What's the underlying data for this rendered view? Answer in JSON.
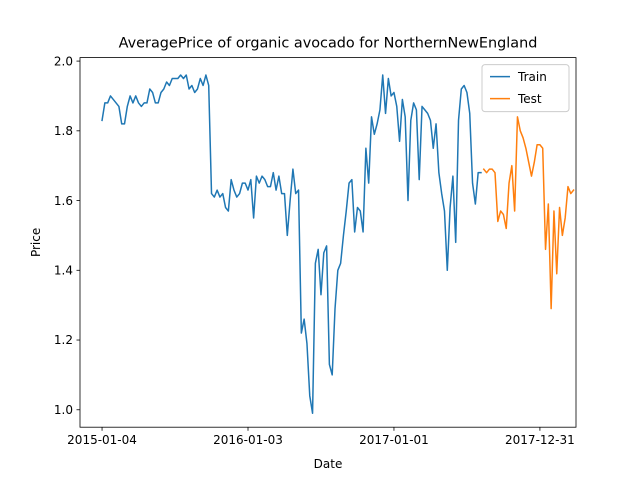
{
  "chart_data": {
    "type": "line",
    "title": "AveragePrice of organic avocado for NorthernNewEngland",
    "xlabel": "Date",
    "ylabel": "Price",
    "x_ticks": [
      "2015-01-04",
      "2016-01-03",
      "2017-01-01",
      "2017-12-31"
    ],
    "xlim": [
      "2014-11-10",
      "2018-03-31"
    ],
    "ylim": [
      0.95,
      2.01
    ],
    "y_ticks": [
      1.0,
      1.2,
      1.4,
      1.6,
      1.8,
      2.0
    ],
    "y_tick_labels": [
      "1.0",
      "1.2",
      "1.4",
      "1.6",
      "1.8",
      "2.0"
    ],
    "grid": false,
    "legend_position": "top-right",
    "series": [
      {
        "name": "Train",
        "color": "#1f77b4",
        "points": [
          [
            "2015-01-04",
            1.83
          ],
          [
            "2015-01-11",
            1.88
          ],
          [
            "2015-01-18",
            1.88
          ],
          [
            "2015-01-25",
            1.9
          ],
          [
            "2015-02-01",
            1.89
          ],
          [
            "2015-02-08",
            1.88
          ],
          [
            "2015-02-15",
            1.87
          ],
          [
            "2015-02-22",
            1.82
          ],
          [
            "2015-03-01",
            1.82
          ],
          [
            "2015-03-08",
            1.87
          ],
          [
            "2015-03-15",
            1.9
          ],
          [
            "2015-03-22",
            1.88
          ],
          [
            "2015-03-29",
            1.9
          ],
          [
            "2015-04-05",
            1.88
          ],
          [
            "2015-04-12",
            1.87
          ],
          [
            "2015-04-19",
            1.88
          ],
          [
            "2015-04-26",
            1.88
          ],
          [
            "2015-05-03",
            1.92
          ],
          [
            "2015-05-10",
            1.91
          ],
          [
            "2015-05-17",
            1.88
          ],
          [
            "2015-05-24",
            1.88
          ],
          [
            "2015-05-31",
            1.91
          ],
          [
            "2015-06-07",
            1.92
          ],
          [
            "2015-06-14",
            1.94
          ],
          [
            "2015-06-21",
            1.93
          ],
          [
            "2015-06-28",
            1.95
          ],
          [
            "2015-07-05",
            1.95
          ],
          [
            "2015-07-12",
            1.95
          ],
          [
            "2015-07-19",
            1.96
          ],
          [
            "2015-07-26",
            1.95
          ],
          [
            "2015-08-02",
            1.96
          ],
          [
            "2015-08-09",
            1.92
          ],
          [
            "2015-08-16",
            1.93
          ],
          [
            "2015-08-23",
            1.91
          ],
          [
            "2015-08-30",
            1.92
          ],
          [
            "2015-09-06",
            1.95
          ],
          [
            "2015-09-13",
            1.93
          ],
          [
            "2015-09-20",
            1.96
          ],
          [
            "2015-09-27",
            1.93
          ],
          [
            "2015-10-04",
            1.62
          ],
          [
            "2015-10-11",
            1.61
          ],
          [
            "2015-10-18",
            1.63
          ],
          [
            "2015-10-25",
            1.61
          ],
          [
            "2015-11-01",
            1.62
          ],
          [
            "2015-11-08",
            1.58
          ],
          [
            "2015-11-15",
            1.57
          ],
          [
            "2015-11-22",
            1.66
          ],
          [
            "2015-11-29",
            1.63
          ],
          [
            "2015-12-06",
            1.61
          ],
          [
            "2015-12-13",
            1.62
          ],
          [
            "2015-12-20",
            1.65
          ],
          [
            "2015-12-27",
            1.65
          ],
          [
            "2016-01-03",
            1.63
          ],
          [
            "2016-01-10",
            1.66
          ],
          [
            "2016-01-17",
            1.55
          ],
          [
            "2016-01-24",
            1.67
          ],
          [
            "2016-01-31",
            1.65
          ],
          [
            "2016-02-07",
            1.67
          ],
          [
            "2016-02-14",
            1.66
          ],
          [
            "2016-02-21",
            1.64
          ],
          [
            "2016-02-28",
            1.64
          ],
          [
            "2016-03-06",
            1.68
          ],
          [
            "2016-03-13",
            1.63
          ],
          [
            "2016-03-20",
            1.67
          ],
          [
            "2016-03-27",
            1.62
          ],
          [
            "2016-04-03",
            1.62
          ],
          [
            "2016-04-10",
            1.5
          ],
          [
            "2016-04-17",
            1.6
          ],
          [
            "2016-04-24",
            1.69
          ],
          [
            "2016-05-01",
            1.62
          ],
          [
            "2016-05-08",
            1.63
          ],
          [
            "2016-05-15",
            1.22
          ],
          [
            "2016-05-22",
            1.26
          ],
          [
            "2016-05-29",
            1.19
          ],
          [
            "2016-06-05",
            1.04
          ],
          [
            "2016-06-12",
            0.99
          ],
          [
            "2016-06-19",
            1.42
          ],
          [
            "2016-06-26",
            1.46
          ],
          [
            "2016-07-03",
            1.33
          ],
          [
            "2016-07-10",
            1.45
          ],
          [
            "2016-07-17",
            1.47
          ],
          [
            "2016-07-24",
            1.13
          ],
          [
            "2016-07-31",
            1.1
          ],
          [
            "2016-08-07",
            1.29
          ],
          [
            "2016-08-14",
            1.4
          ],
          [
            "2016-08-21",
            1.42
          ],
          [
            "2016-08-28",
            1.5
          ],
          [
            "2016-09-04",
            1.57
          ],
          [
            "2016-09-11",
            1.65
          ],
          [
            "2016-09-18",
            1.66
          ],
          [
            "2016-09-25",
            1.51
          ],
          [
            "2016-10-02",
            1.58
          ],
          [
            "2016-10-09",
            1.57
          ],
          [
            "2016-10-16",
            1.51
          ],
          [
            "2016-10-23",
            1.75
          ],
          [
            "2016-10-30",
            1.65
          ],
          [
            "2016-11-06",
            1.84
          ],
          [
            "2016-11-13",
            1.79
          ],
          [
            "2016-11-20",
            1.82
          ],
          [
            "2016-11-27",
            1.86
          ],
          [
            "2016-12-04",
            1.96
          ],
          [
            "2016-12-11",
            1.85
          ],
          [
            "2016-12-18",
            1.95
          ],
          [
            "2016-12-25",
            1.9
          ],
          [
            "2017-01-01",
            1.91
          ],
          [
            "2017-01-08",
            1.87
          ],
          [
            "2017-01-15",
            1.77
          ],
          [
            "2017-01-22",
            1.89
          ],
          [
            "2017-01-29",
            1.84
          ],
          [
            "2017-02-05",
            1.6
          ],
          [
            "2017-02-12",
            1.83
          ],
          [
            "2017-02-19",
            1.88
          ],
          [
            "2017-02-26",
            1.86
          ],
          [
            "2017-03-05",
            1.66
          ],
          [
            "2017-03-12",
            1.87
          ],
          [
            "2017-03-19",
            1.86
          ],
          [
            "2017-03-26",
            1.85
          ],
          [
            "2017-04-02",
            1.83
          ],
          [
            "2017-04-09",
            1.75
          ],
          [
            "2017-04-16",
            1.82
          ],
          [
            "2017-04-23",
            1.68
          ],
          [
            "2017-04-30",
            1.62
          ],
          [
            "2017-05-07",
            1.57
          ],
          [
            "2017-05-14",
            1.4
          ],
          [
            "2017-05-21",
            1.58
          ],
          [
            "2017-05-28",
            1.67
          ],
          [
            "2017-06-04",
            1.48
          ],
          [
            "2017-06-11",
            1.83
          ],
          [
            "2017-06-18",
            1.92
          ],
          [
            "2017-06-25",
            1.93
          ],
          [
            "2017-07-02",
            1.91
          ],
          [
            "2017-07-09",
            1.85
          ],
          [
            "2017-07-16",
            1.65
          ],
          [
            "2017-07-23",
            1.59
          ],
          [
            "2017-07-30",
            1.68
          ],
          [
            "2017-08-06",
            1.68
          ]
        ]
      },
      {
        "name": "Test",
        "color": "#ff7f0e",
        "points": [
          [
            "2017-08-13",
            1.69
          ],
          [
            "2017-08-20",
            1.68
          ],
          [
            "2017-08-27",
            1.69
          ],
          [
            "2017-09-03",
            1.69
          ],
          [
            "2017-09-10",
            1.68
          ],
          [
            "2017-09-17",
            1.54
          ],
          [
            "2017-09-24",
            1.57
          ],
          [
            "2017-10-01",
            1.56
          ],
          [
            "2017-10-08",
            1.52
          ],
          [
            "2017-10-15",
            1.65
          ],
          [
            "2017-10-22",
            1.7
          ],
          [
            "2017-10-29",
            1.57
          ],
          [
            "2017-11-05",
            1.84
          ],
          [
            "2017-11-12",
            1.8
          ],
          [
            "2017-11-19",
            1.78
          ],
          [
            "2017-11-26",
            1.75
          ],
          [
            "2017-12-03",
            1.71
          ],
          [
            "2017-12-10",
            1.67
          ],
          [
            "2017-12-17",
            1.71
          ],
          [
            "2017-12-24",
            1.76
          ],
          [
            "2017-12-31",
            1.76
          ],
          [
            "2018-01-07",
            1.75
          ],
          [
            "2018-01-14",
            1.46
          ],
          [
            "2018-01-21",
            1.59
          ],
          [
            "2018-01-28",
            1.29
          ],
          [
            "2018-02-04",
            1.57
          ],
          [
            "2018-02-11",
            1.39
          ],
          [
            "2018-02-18",
            1.58
          ],
          [
            "2018-02-25",
            1.5
          ],
          [
            "2018-03-04",
            1.55
          ],
          [
            "2018-03-11",
            1.64
          ],
          [
            "2018-03-18",
            1.62
          ],
          [
            "2018-03-25",
            1.63
          ]
        ]
      }
    ]
  }
}
